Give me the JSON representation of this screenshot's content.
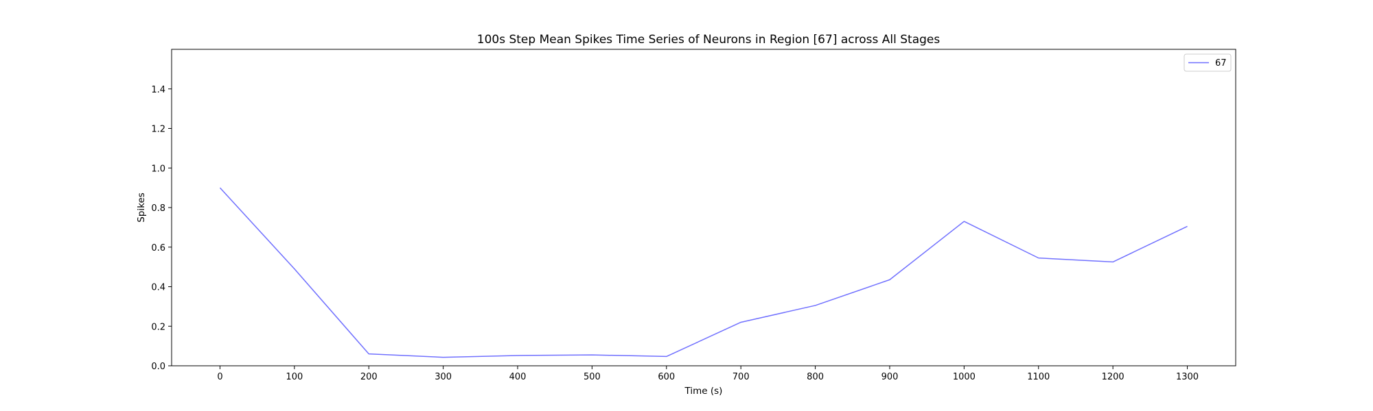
{
  "chart_data": {
    "type": "line",
    "title": "100s Step Mean Spikes Time Series of Neurons in Region [67] across All Stages",
    "xlabel": "Time (s)",
    "ylabel": "Spikes",
    "xlim": [
      -65,
      1365
    ],
    "ylim": [
      0,
      1.6
    ],
    "xticks": [
      0,
      100,
      200,
      300,
      400,
      500,
      600,
      700,
      800,
      900,
      1000,
      1100,
      1200,
      1300
    ],
    "yticks": [
      0.0,
      0.2,
      0.4,
      0.6,
      0.8,
      1.0,
      1.2,
      1.4
    ],
    "ytick_labels": [
      "0.0",
      "0.2",
      "0.4",
      "0.6",
      "0.8",
      "1.0",
      "1.2",
      "1.4"
    ],
    "grid": false,
    "legend_position": "top-right",
    "series": [
      {
        "name": "67",
        "color": "#7070ff",
        "x": [
          0,
          100,
          200,
          300,
          400,
          500,
          600,
          700,
          800,
          900,
          1000,
          1100,
          1200,
          1300
        ],
        "y": [
          0.9,
          0.49,
          0.06,
          0.043,
          0.052,
          0.055,
          0.047,
          0.22,
          0.305,
          0.435,
          0.73,
          0.545,
          0.525,
          0.705
        ]
      }
    ]
  }
}
